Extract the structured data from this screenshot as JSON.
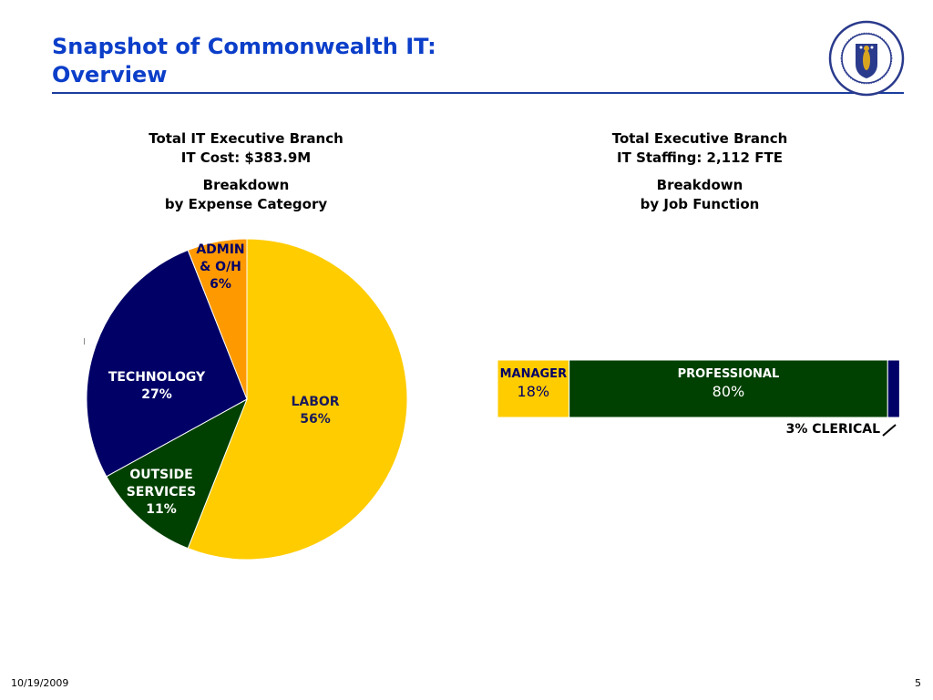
{
  "slide": {
    "title_line1": "Snapshot of Commonwealth IT:",
    "title_line2": "Overview",
    "date": "10/19/2009",
    "page_number": "5",
    "seal": {
      "text_top": "SIGILLUM",
      "text_left": "MASSACHUSETTENSIS",
      "text_right": "REIPUBLICAE",
      "colors": {
        "ring": "#2a3a8c",
        "shield": "#2a3a8c",
        "figure": "#d9a520"
      }
    }
  },
  "chart_data": [
    {
      "type": "pie",
      "title_lines": [
        "Total IT Executive Branch",
        "IT Cost: $383.9M"
      ],
      "subtitle_lines": [
        "Breakdown",
        "by Expense Category"
      ],
      "slices": [
        {
          "name": "LABOR",
          "label_lines": [
            "LABOR",
            "56%"
          ],
          "value": 56,
          "color": "#ffcc00",
          "text_color": "#1a1a5a"
        },
        {
          "name": "OUTSIDE SERVICES",
          "label_lines": [
            "OUTSIDE",
            "SERVICES",
            "11%"
          ],
          "value": 11,
          "color": "#004000",
          "text_color": "#ffffff"
        },
        {
          "name": "TECHNOLOGY",
          "label_lines": [
            "TECHNOLOGY",
            "27%"
          ],
          "value": 27,
          "color": "#000066",
          "text_color": "#ffffff"
        },
        {
          "name": "ADMIN & O/H",
          "label_lines": [
            "ADMIN",
            "& O/H",
            "6%"
          ],
          "value": 6,
          "color": "#ff9900",
          "text_color": "#000066"
        }
      ]
    },
    {
      "type": "bar",
      "orientation": "horizontal-stacked",
      "title_lines": [
        "Total Executive Branch",
        "IT Staffing: 2,112 FTE"
      ],
      "subtitle_lines": [
        "Breakdown",
        "by Job Function"
      ],
      "segments": [
        {
          "name": "MANAGER",
          "value": 18,
          "value_label": "18%",
          "color": "#ffcc00"
        },
        {
          "name": "PROFESSIONAL",
          "value": 80,
          "value_label": "80%",
          "color": "#004000"
        },
        {
          "name": "CLERICAL",
          "value": 3,
          "value_label": "3% CLERICAL",
          "color": "#000066"
        }
      ]
    }
  ]
}
